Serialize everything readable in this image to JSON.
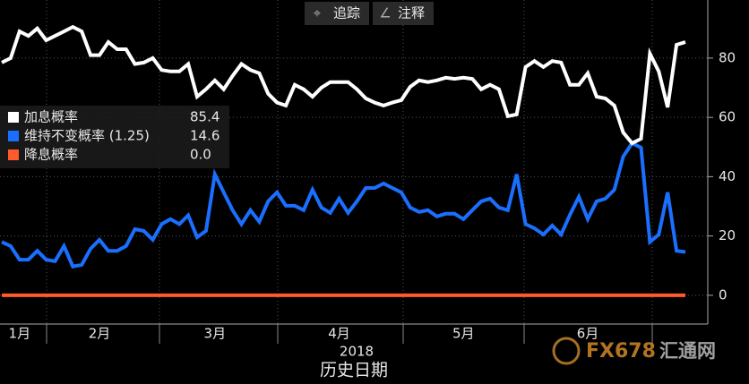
{
  "toolbar": {
    "buttons": [
      "追踪",
      "注释"
    ]
  },
  "watermark": {
    "brand": "FX678",
    "site": "汇通网"
  },
  "chart_data": {
    "type": "line",
    "x_label": "历史日期",
    "year_label": "2018",
    "categories": [
      null,
      null,
      "1月",
      null,
      null,
      null,
      null,
      null,
      null,
      null,
      null,
      "2月",
      null,
      null,
      null,
      null,
      null,
      null,
      null,
      null,
      null,
      null,
      null,
      null,
      "3月",
      null,
      null,
      null,
      null,
      null,
      null,
      null,
      null,
      null,
      null,
      null,
      null,
      null,
      "4月",
      null,
      null,
      null,
      null,
      null,
      null,
      null,
      null,
      null,
      null,
      null,
      null,
      null,
      "5月",
      null,
      null,
      null,
      null,
      null,
      null,
      null,
      null,
      null,
      null,
      null,
      null,
      null,
      "6月",
      null,
      null,
      null,
      null,
      null,
      null,
      null,
      null,
      null,
      null,
      null
    ],
    "series": [
      {
        "name": "加息概率",
        "color": "#ffffff",
        "latest": 85.4,
        "values": [
          78.5,
          80,
          89,
          87.5,
          90,
          86,
          87.5,
          89,
          90.5,
          89,
          81,
          81,
          85.4,
          83,
          83,
          78,
          78.5,
          80,
          76,
          75.5,
          75.5,
          78,
          67,
          69.5,
          72.5,
          69.5,
          74,
          78,
          76,
          74.9,
          68,
          65,
          64,
          71,
          69.5,
          67,
          70,
          71.9,
          71.9,
          71.9,
          69.5,
          66.4,
          65,
          64,
          65,
          65.8,
          70.3,
          72.5,
          71.9,
          72.5,
          73.4,
          73,
          73.4,
          73,
          69.5,
          71,
          69.5,
          60.4,
          61,
          77,
          79,
          77,
          79,
          78.5,
          71,
          71,
          74.9,
          67,
          66.4,
          64,
          54.9,
          51.3,
          52.8,
          81.5,
          75.5,
          63.4,
          84.5,
          85.4
        ]
      },
      {
        "name": "维持不变概率 (1.25)",
        "color": "#1a6fff",
        "latest": 14.6,
        "values": [
          18,
          16.6,
          12,
          12,
          15,
          12,
          11.5,
          16.6,
          9.7,
          10.3,
          15.7,
          18.7,
          15,
          15,
          16.6,
          22.3,
          21.7,
          18.7,
          24,
          25.7,
          24,
          27,
          19.6,
          21.7,
          40.8,
          34.7,
          28.7,
          24,
          28.7,
          24.8,
          31.7,
          34.7,
          30.2,
          30.2,
          28.7,
          35.6,
          29.6,
          27.8,
          32.6,
          27.8,
          31.7,
          36.2,
          36.2,
          37.7,
          36.2,
          34.7,
          29.6,
          28.1,
          28.7,
          26.6,
          27.5,
          27.5,
          25.7,
          28.7,
          31.7,
          32.6,
          29.6,
          28.7,
          40.8,
          24,
          22.6,
          20.5,
          23.5,
          20.5,
          27.2,
          33.2,
          25.7,
          31.7,
          32.6,
          35.6,
          46.8,
          51.3,
          49.8,
          18,
          20.5,
          34.7,
          15,
          14.6
        ]
      },
      {
        "name": "降息概率",
        "color": "#ff5a2a",
        "latest": {
          "value": 0,
          "label": "0.0"
        },
        "values": [
          0,
          0,
          0,
          0,
          0,
          0,
          0,
          0,
          0,
          0,
          0,
          0,
          0,
          0,
          0,
          0,
          0,
          0,
          0,
          0,
          0,
          0,
          0,
          0,
          0,
          0,
          0,
          0,
          0,
          0,
          0,
          0,
          0,
          0,
          0,
          0,
          0,
          0,
          0,
          0,
          0,
          0,
          0,
          0,
          0,
          0,
          0,
          0,
          0,
          0,
          0,
          0,
          0,
          0,
          0,
          0,
          0,
          0,
          0,
          0,
          0,
          0,
          0,
          0,
          0,
          0,
          0,
          0,
          0,
          0,
          0,
          0,
          0,
          0,
          0,
          0,
          0,
          0
        ]
      }
    ],
    "ylim": [
      -9.7,
      99.6
    ],
    "yticks": [
      0,
      20,
      40,
      60,
      80
    ],
    "grid": true,
    "legend": "upper-left"
  }
}
